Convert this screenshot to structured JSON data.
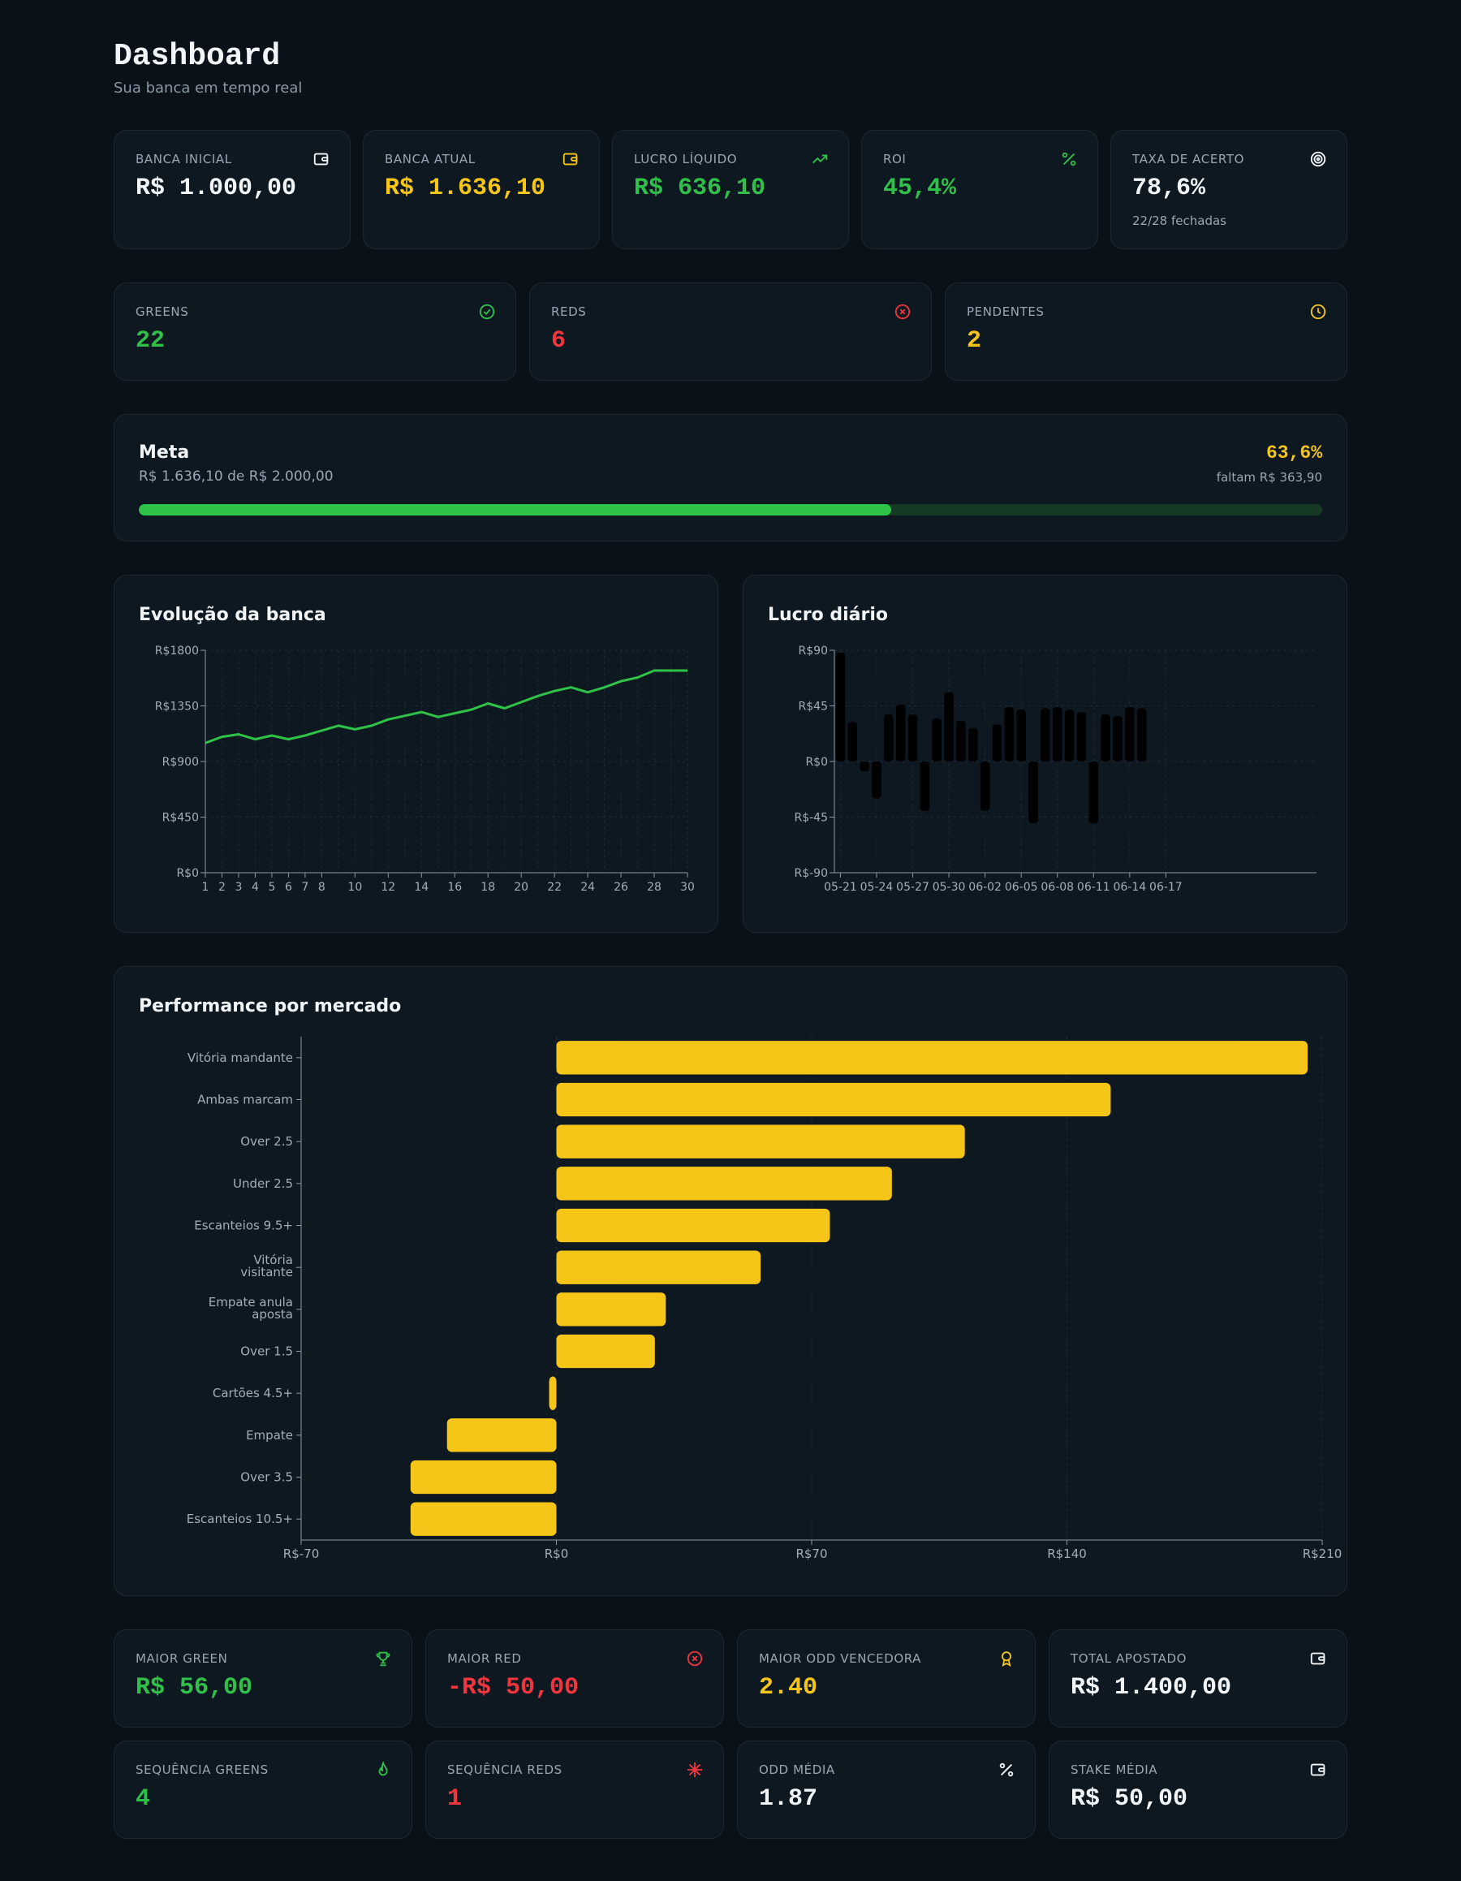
{
  "header": {
    "title": "Dashboard",
    "subtitle": "Sua banca em tempo real"
  },
  "stats_top": [
    {
      "label": "BANCA INICIAL",
      "value": "R$ 1.000,00",
      "icon": "wallet-icon",
      "color": "white"
    },
    {
      "label": "BANCA ATUAL",
      "value": "R$ 1.636,10",
      "icon": "wallet-icon",
      "color": "yellow"
    },
    {
      "label": "LUCRO LÍQUIDO",
      "value": "R$ 636,10",
      "icon": "trending-up-icon",
      "color": "green"
    },
    {
      "label": "ROI",
      "value": "45,4%",
      "icon": "percent-icon",
      "color": "green"
    },
    {
      "label": "TAXA DE ACERTO",
      "value": "78,6%",
      "sub": "22/28 fechadas",
      "icon": "target-icon",
      "color": "white"
    }
  ],
  "stats_results": [
    {
      "label": "GREENS",
      "value": "22",
      "icon": "check-circle-icon",
      "color": "green"
    },
    {
      "label": "REDS",
      "value": "6",
      "icon": "x-circle-icon",
      "color": "red"
    },
    {
      "label": "PENDENTES",
      "value": "2",
      "icon": "clock-icon",
      "color": "yellow"
    }
  ],
  "goal": {
    "title": "Meta",
    "subtitle": "R$ 1.636,10 de R$ 2.000,00",
    "percent_label": "63,6%",
    "remaining": "faltam R$ 363,90",
    "progress": 0.636
  },
  "colors": {
    "green": "#2ec346",
    "yellow": "#f5c518",
    "red": "#f0353f",
    "white": "#f2f5f8",
    "bar_dark": "#000000"
  },
  "chart_data": [
    {
      "type": "line",
      "title": "Evolução da banca",
      "x": [
        1,
        2,
        3,
        4,
        5,
        6,
        7,
        8,
        9,
        10,
        11,
        12,
        13,
        14,
        15,
        16,
        17,
        18,
        19,
        20,
        21,
        22,
        23,
        24,
        25,
        26,
        27,
        28,
        29,
        30
      ],
      "x_ticks": [
        "1",
        "2",
        "3",
        "4",
        "5",
        "6",
        "7",
        "8",
        "10",
        "12",
        "14",
        "16",
        "18",
        "20",
        "22",
        "24",
        "26",
        "28",
        "30"
      ],
      "y_ticks": [
        "R$0",
        "R$450",
        "R$900",
        "R$1350",
        "R$1800"
      ],
      "ylim": [
        0,
        1800
      ],
      "series": [
        {
          "values": [
            1050,
            1100,
            1120,
            1080,
            1110,
            1080,
            1110,
            1150,
            1190,
            1160,
            1190,
            1240,
            1270,
            1300,
            1260,
            1290,
            1320,
            1370,
            1330,
            1380,
            1430,
            1470,
            1500,
            1460,
            1500,
            1550,
            1580,
            1636,
            1636,
            1636
          ]
        }
      ],
      "grid": true
    },
    {
      "type": "bar",
      "title": "Lucro diário",
      "categories": [
        "05-21",
        "05-22",
        "05-23",
        "05-24",
        "05-25",
        "05-26",
        "05-27",
        "05-28",
        "05-29",
        "05-30",
        "05-31",
        "06-01",
        "06-02",
        "06-03",
        "06-04",
        "06-05",
        "06-06",
        "06-07",
        "06-08",
        "06-09",
        "06-10",
        "06-11",
        "06-12",
        "06-13",
        "06-14",
        "06-15"
      ],
      "values": [
        88,
        32,
        -8,
        -30,
        38,
        46,
        38,
        -40,
        35,
        56,
        33,
        27,
        -40,
        30,
        44,
        42,
        -50,
        43,
        44,
        42,
        40,
        -50,
        38,
        37,
        44,
        43
      ],
      "x_ticks": [
        "05-21",
        "05-24",
        "05-27",
        "05-30",
        "06-02",
        "06-05",
        "06-08",
        "06-11",
        "06-14",
        "06-17"
      ],
      "y_ticks": [
        "R$-90",
        "R$-45",
        "R$0",
        "R$45",
        "R$90"
      ],
      "ylim": [
        -90,
        90
      ],
      "grid": true
    },
    {
      "type": "bar",
      "orientation": "horizontal",
      "title": "Performance por mercado",
      "categories": [
        "Vitória mandante",
        "Ambas marcam",
        "Over 2.5",
        "Under 2.5",
        "Escanteios 9.5+",
        "Vitória visitante",
        "Empate anula aposta",
        "Over 1.5",
        "Cartões 4.5+",
        "Empate",
        "Over 3.5",
        "Escanteios 10.5+"
      ],
      "values": [
        206,
        152,
        112,
        92,
        75,
        56,
        30,
        27,
        -2,
        -30,
        -40,
        -40
      ],
      "x_ticks": [
        "R$-70",
        "R$0",
        "R$70",
        "R$140",
        "R$210"
      ],
      "xlim": [
        -70,
        210
      ],
      "grid": true
    }
  ],
  "stats_bottom": [
    {
      "label": "MAIOR GREEN",
      "value": "R$ 56,00",
      "icon": "trophy-icon",
      "color": "green"
    },
    {
      "label": "MAIOR RED",
      "value": "-R$ 50,00",
      "icon": "x-circle-icon",
      "color": "red"
    },
    {
      "label": "MAIOR ODD VENCEDORA",
      "value": "2.40",
      "icon": "award-icon",
      "color": "yellow"
    },
    {
      "label": "TOTAL APOSTADO",
      "value": "R$ 1.400,00",
      "icon": "wallet-icon",
      "color": "white"
    },
    {
      "label": "SEQUÊNCIA GREENS",
      "value": "4",
      "icon": "flame-icon",
      "color": "green"
    },
    {
      "label": "SEQUÊNCIA REDS",
      "value": "1",
      "icon": "snowflake-icon",
      "color": "red"
    },
    {
      "label": "ODD MÉDIA",
      "value": "1.87",
      "icon": "percent-icon",
      "color": "white"
    },
    {
      "label": "STAKE MÉDIA",
      "value": "R$ 50,00",
      "icon": "wallet-icon",
      "color": "white"
    }
  ]
}
